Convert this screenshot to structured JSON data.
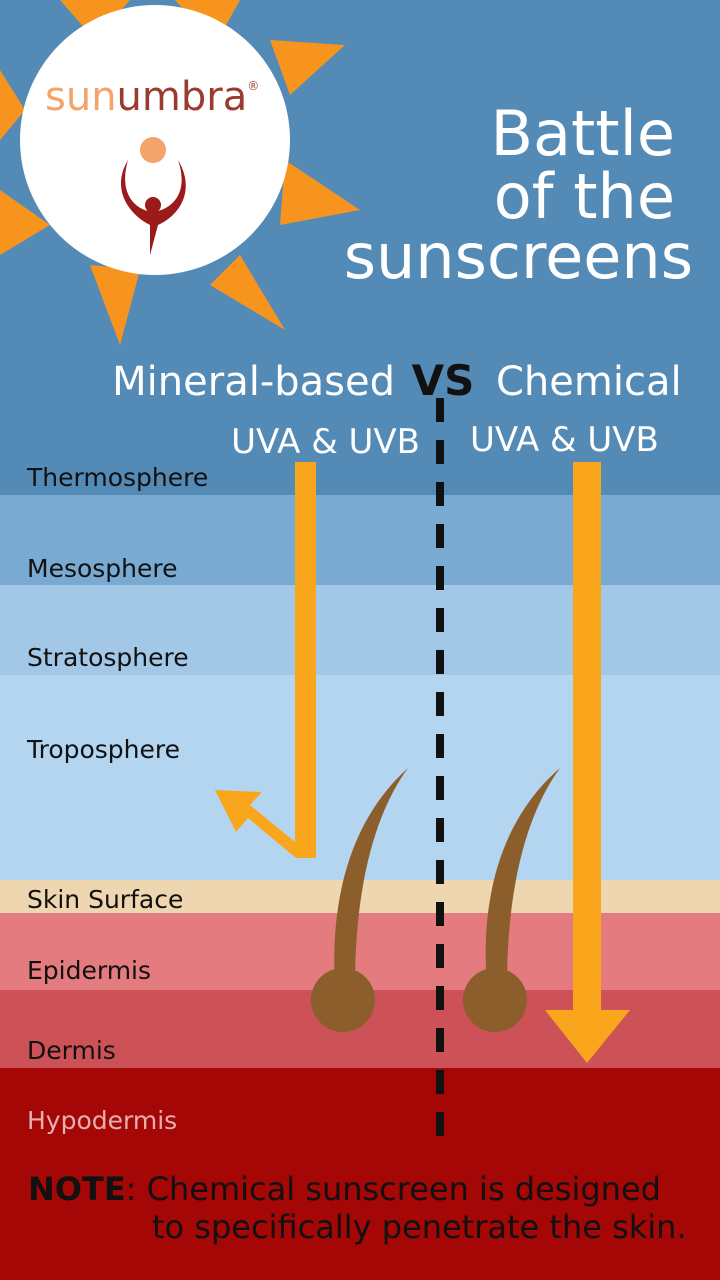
{
  "logo": {
    "sun": "sun",
    "umbra": "umbra",
    "mark": "®"
  },
  "title": [
    "Battle",
    "of the",
    "sunscreens"
  ],
  "comparison": {
    "left": "Mineral-based",
    "vs": "VS",
    "right": "Chemical",
    "left_rays": "UVA & UVB",
    "right_rays": "UVA & UVB"
  },
  "layers": [
    "Thermosphere",
    "Mesosphere",
    "Stratosphere",
    "Troposphere",
    "Skin Surface",
    "Epidermis",
    "Dermis",
    "Hypodermis"
  ],
  "note": {
    "label": "NOTE",
    "line1": ": Chemical sunscreen is designed",
    "line2": "to specifically penetrate the skin."
  }
}
